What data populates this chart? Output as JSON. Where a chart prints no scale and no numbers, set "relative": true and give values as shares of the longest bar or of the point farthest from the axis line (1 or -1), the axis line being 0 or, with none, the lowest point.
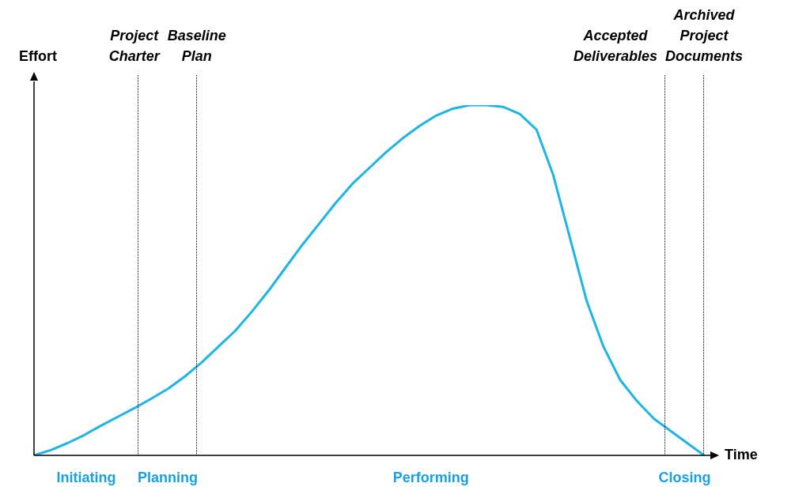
{
  "chart_data": {
    "type": "line",
    "relative": true,
    "xlabel": "Time",
    "ylabel": "Effort",
    "marker": "none",
    "line_style": "solid",
    "categories": [
      null,
      null,
      null,
      null,
      null,
      null,
      null,
      null,
      null,
      null,
      null,
      null,
      null,
      null,
      null,
      null,
      null,
      null,
      null,
      null,
      null,
      null,
      null,
      null,
      null,
      null,
      null,
      null,
      null,
      null,
      null,
      null,
      null,
      null,
      null,
      null,
      null,
      null,
      null,
      null,
      null
    ],
    "series": [
      {
        "color": "#1eb4e6",
        "values": [
          0,
          0.015,
          0.035,
          0.058,
          0.085,
          0.11,
          0.135,
          0.162,
          0.19,
          0.225,
          0.265,
          0.31,
          0.355,
          0.41,
          0.47,
          0.535,
          0.6,
          0.66,
          0.72,
          0.775,
          0.82,
          0.865,
          0.905,
          0.94,
          0.97,
          0.99,
          1.0,
          1.0,
          0.995,
          0.975,
          0.93,
          0.8,
          0.62,
          0.44,
          0.31,
          0.215,
          0.155,
          0.105,
          0.07,
          0.035,
          0
        ]
      }
    ],
    "annotations": [
      "Project Charter",
      "Baseline Plan",
      "Accepted Deliverables",
      "Archived Project Documents",
      "Initiating",
      "Planning",
      "Performing",
      "Closing"
    ]
  }
}
